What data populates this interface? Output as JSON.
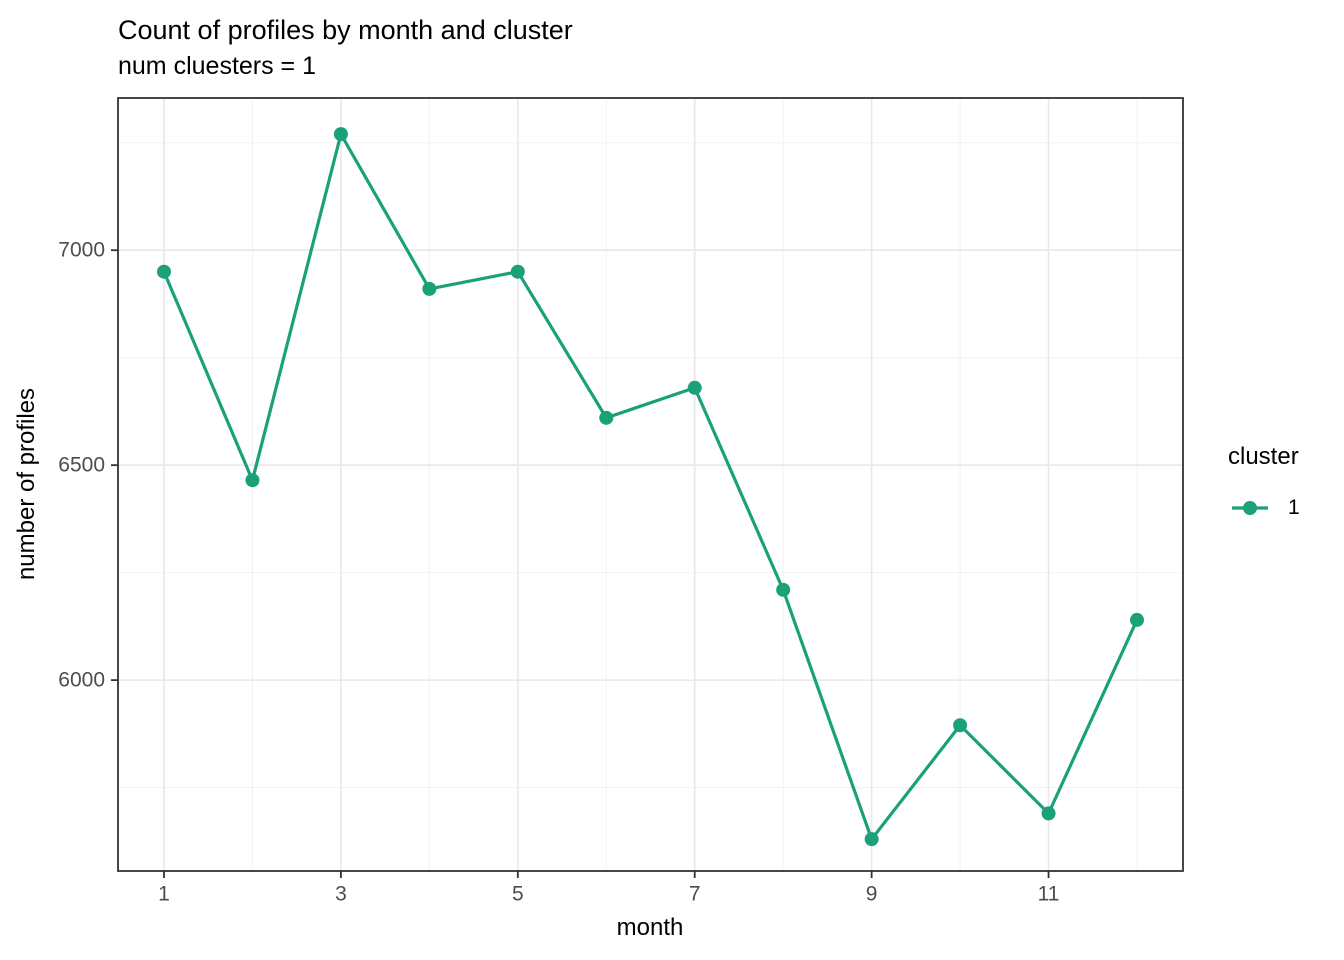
{
  "chart_data": {
    "type": "line",
    "title": "Count of profiles by month and cluster",
    "subtitle": "num cluesters = 1",
    "xlabel": "month",
    "ylabel": "number of profiles",
    "x": [
      1,
      2,
      3,
      4,
      5,
      6,
      7,
      8,
      9,
      10,
      11,
      12
    ],
    "series": [
      {
        "name": "1",
        "color": "#1aa179",
        "values": [
          6950,
          6465,
          7270,
          6910,
          6950,
          6610,
          6680,
          6210,
          5630,
          5895,
          5690,
          6140
        ]
      }
    ],
    "x_tick_labels": [
      "1",
      "3",
      "5",
      "7",
      "9",
      "11"
    ],
    "x_tick_values": [
      1,
      3,
      5,
      7,
      9,
      11
    ],
    "x_minor_values": [
      2,
      4,
      6,
      8,
      10,
      12
    ],
    "y_tick_labels": [
      "6000",
      "6500",
      "7000"
    ],
    "y_tick_values": [
      6000,
      6500,
      7000
    ],
    "y_minor_values": [
      5750,
      6250,
      6750,
      7250
    ],
    "xlim": [
      0.48,
      12.52
    ],
    "ylim": [
      5556,
      7354
    ],
    "grid": true,
    "legend": {
      "title": "cluster",
      "position": "right",
      "entries": [
        {
          "label": "1",
          "color": "#1aa179"
        }
      ]
    },
    "colors": {
      "grid_major": "#e8e8e8",
      "grid_minor": "#f2f2f2",
      "panel_border": "#333333",
      "tick": "#333333",
      "tick_label": "#4d4d4d"
    }
  }
}
